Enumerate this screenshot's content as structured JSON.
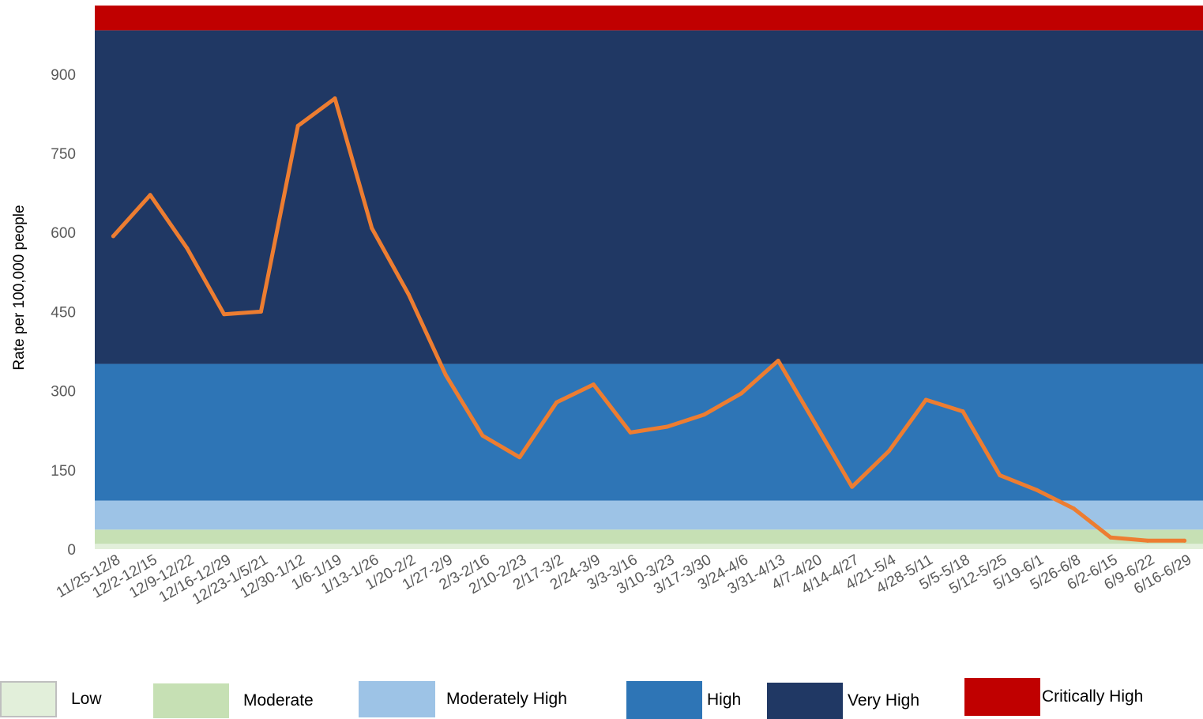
{
  "chart_data": {
    "type": "line",
    "title": "",
    "xlabel": "",
    "ylabel": "Rate per 100,000 people",
    "ylim": [
      0,
      1030
    ],
    "yticks": [
      0,
      150,
      300,
      450,
      600,
      750,
      900
    ],
    "ytick_labels": [
      "0",
      "150",
      "300",
      "450",
      "600",
      "750",
      "900"
    ],
    "grid": false,
    "categories": [
      "11/25-12/8",
      "12/2-12/15",
      "12/9-12/22",
      "12/16-12/29",
      "12/23-1/5/21",
      "12/30-1/12",
      "1/6-1/19",
      "1/13-1/26",
      "1/20-2/2",
      "1/27-2/9",
      "2/3-2/16",
      "2/10-2/23",
      "2/17-3/2",
      "2/24-3/9",
      "3/3-3/16",
      "3/10-3/23",
      "3/17-3/30",
      "3/24-4/6",
      "3/31-4/13",
      "4/7-4/20",
      "4/14-4/27",
      "4/21-5/4",
      "4/28-5/11",
      "5/5-5/18",
      "5/12-5/25",
      "5/19-6/1",
      "5/26-6/8",
      "6/2-6/15",
      "6/9-6/22",
      "6/16-6/29"
    ],
    "series": [
      {
        "values": [
          593,
          671,
          570,
          445,
          450,
          802,
          854,
          608,
          482,
          330,
          215,
          174,
          278,
          312,
          221,
          232,
          255,
          295,
          357,
          238,
          118,
          186,
          283,
          261,
          140,
          112,
          77,
          22,
          16,
          16
        ],
        "color": "#ED7D31"
      }
    ],
    "bands": [
      {
        "name": "Low",
        "from": 0,
        "to": 10,
        "color": "#E2EFDA"
      },
      {
        "name": "Moderate",
        "from": 10,
        "to": 37,
        "color": "#C6E0B4"
      },
      {
        "name": "Moderately High",
        "from": 37,
        "to": 92,
        "color": "#9DC3E6"
      },
      {
        "name": "High",
        "from": 92,
        "to": 351,
        "color": "#2E75B6"
      },
      {
        "name": "Very High",
        "from": 351,
        "to": 983,
        "color": "#203864"
      },
      {
        "name": "Critically High",
        "from": 983,
        "to": 1030,
        "color": "#C00000"
      }
    ],
    "legend_position": "bottom",
    "legend": [
      "Low",
      "Moderate",
      "Moderately High",
      "High",
      "Very High",
      "Critically High"
    ]
  }
}
